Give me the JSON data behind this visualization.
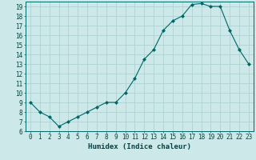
{
  "x": [
    0,
    1,
    2,
    3,
    4,
    5,
    6,
    7,
    8,
    9,
    10,
    11,
    12,
    13,
    14,
    15,
    16,
    17,
    18,
    19,
    20,
    21,
    22,
    23
  ],
  "y": [
    9,
    8,
    7.5,
    6.5,
    7,
    7.5,
    8,
    8.5,
    9,
    9,
    10,
    11.5,
    13.5,
    14.5,
    16.5,
    17.5,
    18,
    19.2,
    19.3,
    19,
    19,
    16.5,
    14.5,
    13
  ],
  "xlabel": "Humidex (Indice chaleur)",
  "ylim": [
    6,
    19.5
  ],
  "xlim": [
    -0.5,
    23.5
  ],
  "yticks": [
    6,
    7,
    8,
    9,
    10,
    11,
    12,
    13,
    14,
    15,
    16,
    17,
    18,
    19
  ],
  "xticks": [
    0,
    1,
    2,
    3,
    4,
    5,
    6,
    7,
    8,
    9,
    10,
    11,
    12,
    13,
    14,
    15,
    16,
    17,
    18,
    19,
    20,
    21,
    22,
    23
  ],
  "line_color": "#006666",
  "marker": "D",
  "marker_size": 2.0,
  "bg_color": "#cce8e8",
  "grid_color": "#aacece",
  "tick_label_color": "#004444",
  "xlabel_color": "#004444",
  "tick_fontsize": 5.5,
  "xlabel_fontsize": 6.5
}
